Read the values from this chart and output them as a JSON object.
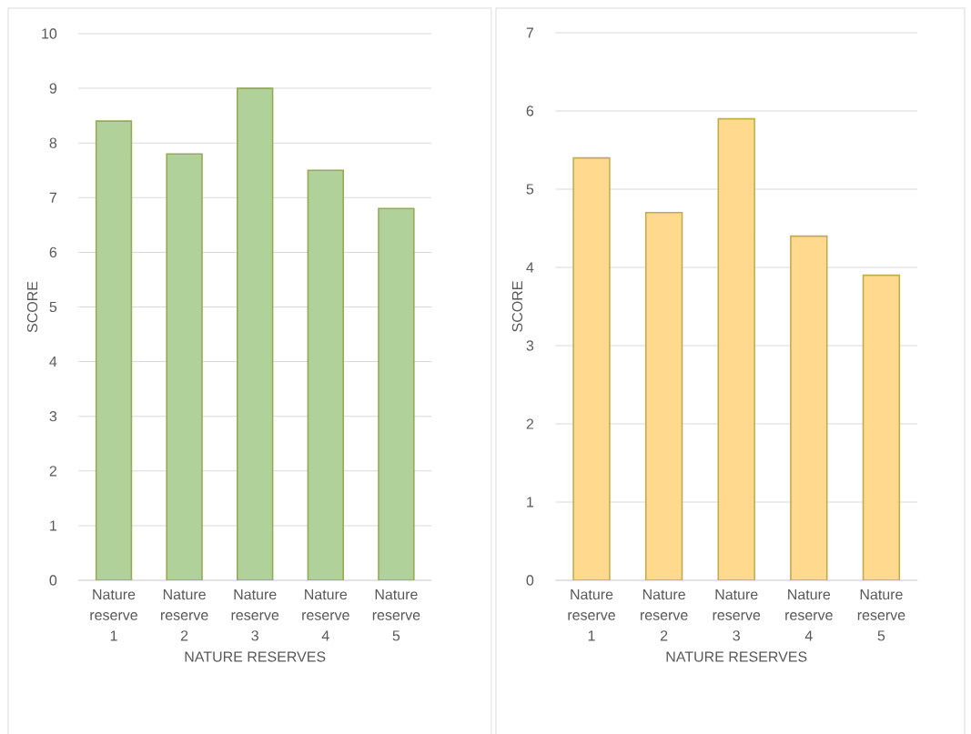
{
  "chart_data": [
    {
      "type": "bar",
      "xlabel": "NATURE RESERVES",
      "ylabel": "SCORE",
      "categories": [
        "Nature reserve 1",
        "Nature reserve 2",
        "Nature reserve 3",
        "Nature reserve 4",
        "Nature reserve 5"
      ],
      "values": [
        8.4,
        7.8,
        9.0,
        7.5,
        6.8
      ],
      "color": "#b0d29a",
      "ylim": [
        0,
        10
      ],
      "yticks": [
        0,
        1,
        2,
        3,
        4,
        5,
        6,
        7,
        8,
        9,
        10
      ],
      "grid": "y"
    },
    {
      "type": "bar",
      "xlabel": "NATURE RESERVES",
      "ylabel": "SCORE",
      "categories": [
        "Nature reserve 1",
        "Nature reserve 2",
        "Nature reserve 3",
        "Nature reserve 4",
        "Nature reserve 5"
      ],
      "values": [
        5.4,
        4.7,
        5.9,
        4.4,
        3.9
      ],
      "color": "#fed98e",
      "ylim": [
        0,
        7
      ],
      "yticks": [
        0,
        1,
        2,
        3,
        4,
        5,
        6,
        7
      ],
      "grid": "y"
    }
  ]
}
